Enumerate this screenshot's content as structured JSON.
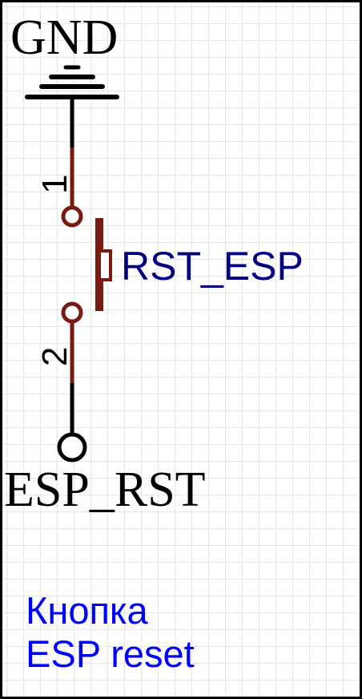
{
  "schematic": {
    "net_top": "GND",
    "net_bottom": "ESP_RST",
    "component_designator": "RST_ESP",
    "pin_1": "1",
    "pin_2": "2",
    "note_line_1": "Кнопка",
    "note_line_2": "ESP reset"
  },
  "colors": {
    "wire": "#000000",
    "component": "#7a1a10",
    "designator": "#000080",
    "note": "#0000ff",
    "grid": "#e6e6e6"
  }
}
